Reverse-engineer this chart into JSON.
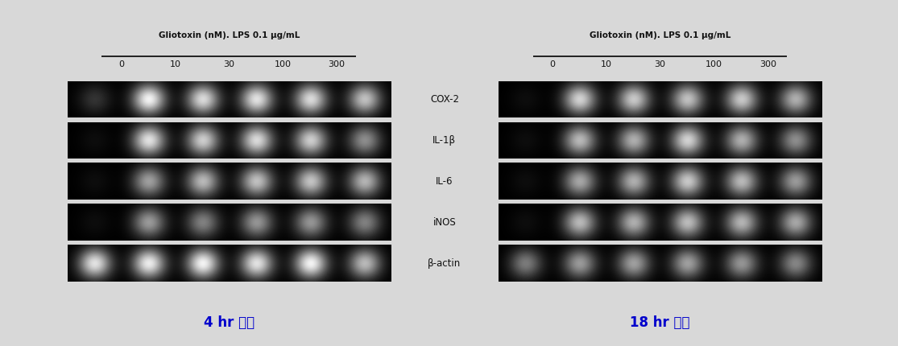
{
  "background_color": "#d8d8d8",
  "outer_bg": "#c8c8c8",
  "gel_bg": "#000000",
  "title_header": "Gliotoxin (nM). LPS 0.1 μg/mL",
  "concentrations": [
    "0",
    "10",
    "30",
    "100",
    "300"
  ],
  "gene_labels": [
    "COX-2",
    "IL-1β",
    "IL-6",
    "iNOS",
    "β-actin"
  ],
  "label_left": "4 hr 처리",
  "label_right": "18 hr 처리",
  "label_box_color": "#d8e8f8",
  "label_text_color": "#0000cc",
  "bands_4hr": [
    [
      0.2,
      0.95,
      0.85,
      0.88,
      0.85,
      0.75
    ],
    [
      0.05,
      0.88,
      0.8,
      0.85,
      0.8,
      0.55
    ],
    [
      0.05,
      0.62,
      0.72,
      0.75,
      0.76,
      0.7
    ],
    [
      0.05,
      0.6,
      0.5,
      0.58,
      0.58,
      0.5
    ],
    [
      0.88,
      0.92,
      0.95,
      0.88,
      0.95,
      0.72
    ]
  ],
  "bands_18hr": [
    [
      0.05,
      0.82,
      0.78,
      0.75,
      0.78,
      0.68
    ],
    [
      0.05,
      0.72,
      0.68,
      0.82,
      0.68,
      0.55
    ],
    [
      0.05,
      0.65,
      0.68,
      0.78,
      0.72,
      0.6
    ],
    [
      0.05,
      0.72,
      0.68,
      0.73,
      0.7,
      0.65
    ],
    [
      0.48,
      0.6,
      0.62,
      0.62,
      0.58,
      0.52
    ]
  ]
}
